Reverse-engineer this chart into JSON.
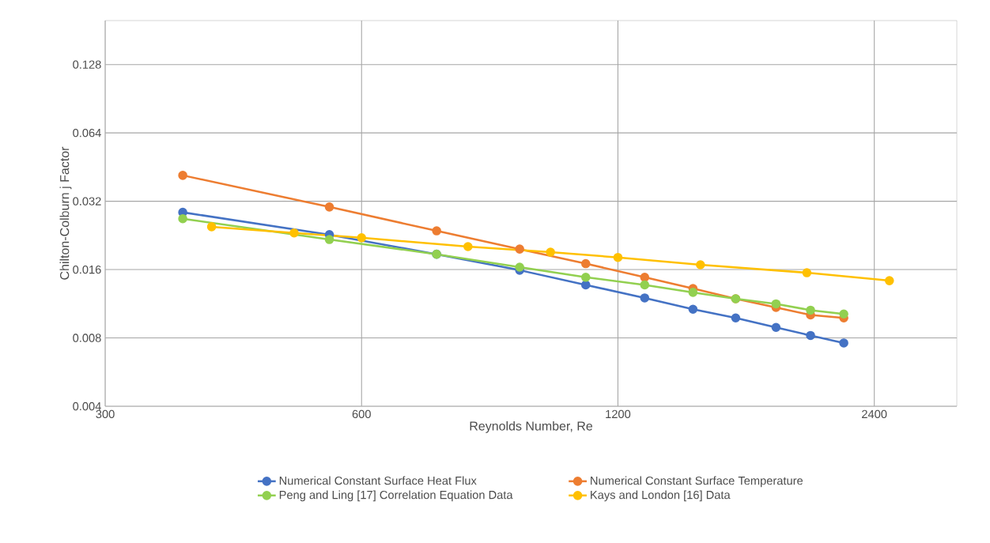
{
  "chart_data": {
    "type": "line",
    "xlabel": "Reynolds Number, Re",
    "ylabel": "Chilton-Colburn j Factor",
    "log": "xy",
    "grid": true,
    "legend": "bottom",
    "marker": "circle",
    "line_style": "solid",
    "xlim": [
      300,
      3000
    ],
    "xticks": [
      300,
      600,
      1200,
      2400
    ],
    "ylim": [
      0.004,
      0.2
    ],
    "yticks": [
      0.004,
      0.008,
      0.016,
      0.032,
      0.064,
      0.128
    ],
    "series": [
      {
        "name": "Numerical Constant Surface Heat Flux",
        "color": "#4472c4",
        "x": [
          370,
          550,
          735,
          920,
          1100,
          1290,
          1470,
          1650,
          1840,
          2020,
          2210
        ],
        "values": [
          0.0286,
          0.0228,
          0.0187,
          0.0159,
          0.0137,
          0.012,
          0.0107,
          0.0098,
          0.0089,
          0.0082,
          0.0076
        ]
      },
      {
        "name": "Numerical Constant Surface Temperature",
        "color": "#ed7d31",
        "x": [
          370,
          550,
          735,
          920,
          1100,
          1290,
          1470,
          1650,
          1840,
          2020,
          2210
        ],
        "values": [
          0.0416,
          0.0302,
          0.0237,
          0.0197,
          0.017,
          0.0148,
          0.0132,
          0.0119,
          0.0109,
          0.0101,
          0.0098
        ]
      },
      {
        "name": "Peng and Ling [17] Correlation Equation Data",
        "color": "#92d050",
        "x": [
          370,
          550,
          735,
          920,
          1100,
          1290,
          1470,
          1650,
          1840,
          2020,
          2210
        ],
        "values": [
          0.0268,
          0.0217,
          0.0187,
          0.0164,
          0.0148,
          0.0137,
          0.0127,
          0.0119,
          0.0113,
          0.0106,
          0.0102
        ]
      },
      {
        "name": "Kays and London [16] Data",
        "color": "#ffc000",
        "x": [
          400,
          500,
          600,
          800,
          1000,
          1200,
          1500,
          2000,
          2500
        ],
        "values": [
          0.0247,
          0.0232,
          0.0221,
          0.0202,
          0.0191,
          0.0181,
          0.0168,
          0.0155,
          0.0143
        ]
      }
    ]
  }
}
